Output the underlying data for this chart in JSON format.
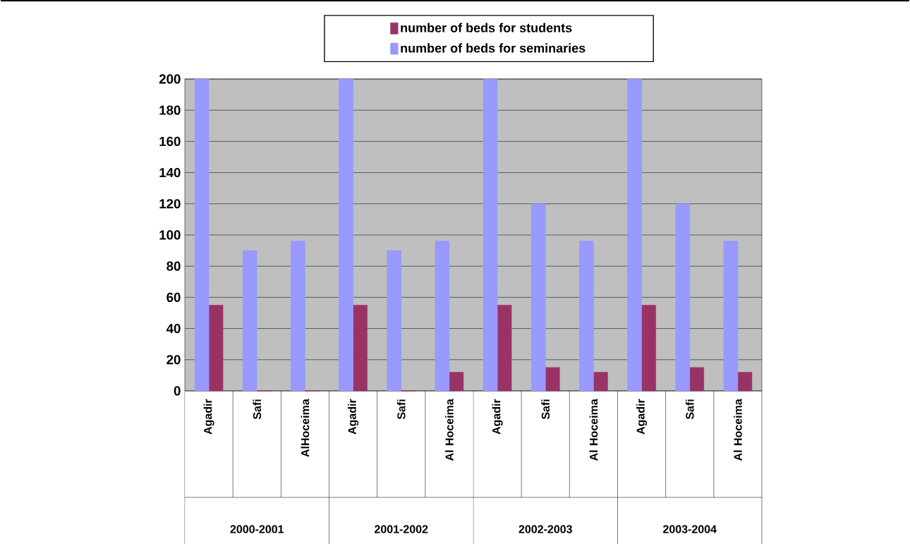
{
  "chart_data": {
    "type": "bar",
    "categories": [
      "Agadir",
      "Safi",
      "AlHoceima",
      "Agadir",
      "Safi",
      "Al Hoceima",
      "Agadir",
      "Safi",
      "Al Hoceima",
      "Agadir",
      "Safi",
      "Al Hoceima"
    ],
    "series": [
      {
        "name": "number of beds for students",
        "color": "#993366",
        "values": [
          55,
          0,
          0,
          55,
          0,
          12,
          55,
          15,
          12,
          55,
          15,
          12
        ]
      },
      {
        "name": "number of beds for seminaries",
        "color": "#9999ff",
        "values": [
          200,
          90,
          96,
          200,
          90,
          96,
          200,
          120,
          96,
          200,
          120,
          96
        ]
      }
    ],
    "annotations": [
      "2000-2001",
      "2001-2002",
      "2002-2003",
      "2003-2004"
    ],
    "ylim": [
      0,
      200
    ],
    "yticks": [
      0,
      20,
      40,
      60,
      80,
      100,
      120,
      140,
      160,
      180,
      200
    ],
    "grid": "y",
    "legend": "top"
  }
}
